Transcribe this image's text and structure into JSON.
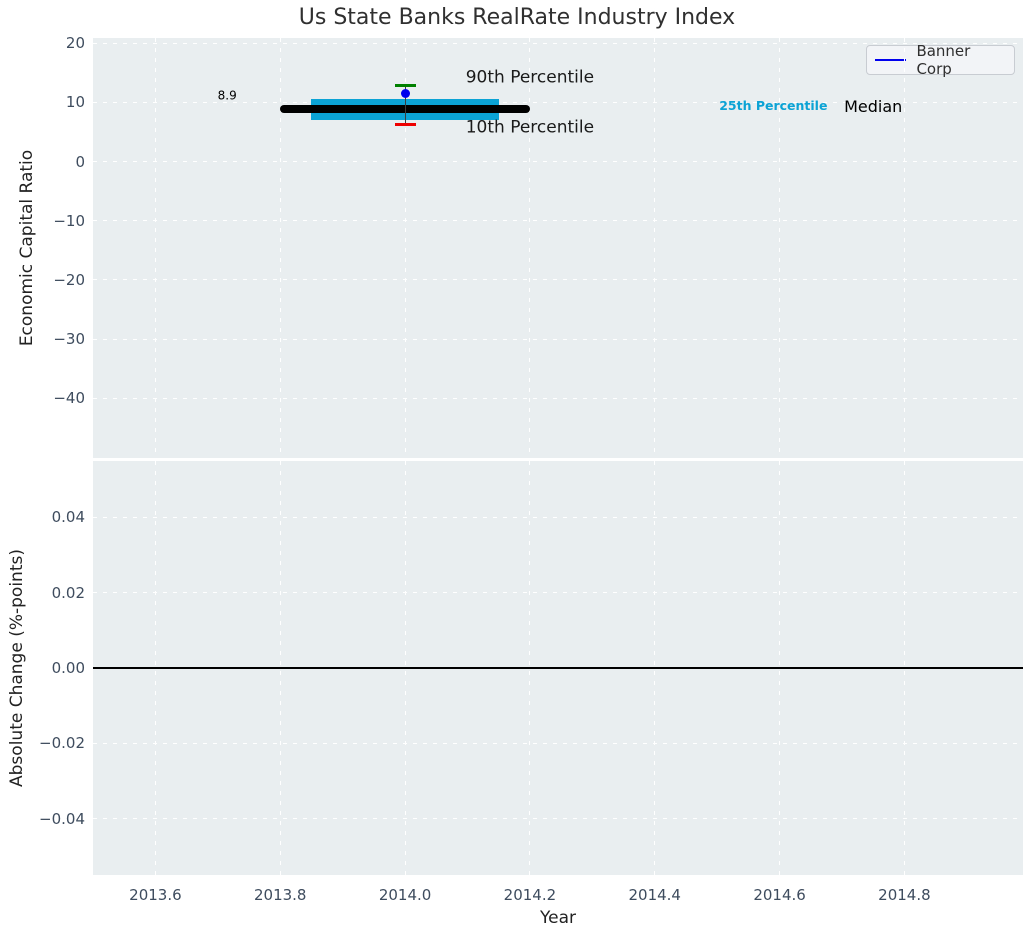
{
  "figure": {
    "title": "Us State Banks RealRate Industry Index"
  },
  "legend": {
    "label": "Banner Corp",
    "line_color": "#0000ee",
    "position": "upper right"
  },
  "colors": {
    "axes_background": "#e9eef0",
    "grid": "#ffffff",
    "tick_label": "#3e4c5e",
    "axis_label": "#222222",
    "title": "#303030",
    "median_line": "#000000",
    "percentile_band": "#0ba3d5",
    "p90_tick": "#008000",
    "p10_tick": "#ee0000",
    "banner_corp": "#0000ee",
    "whisker": "#3c3c3c",
    "zero_line": "#000000"
  },
  "chart_data": [
    {
      "type": "scatter",
      "subplot": "top",
      "title": "Us State Banks RealRate Industry Index",
      "ylabel": "Economic Capital Ratio",
      "xlim": [
        2013.5,
        2014.99
      ],
      "ylim": [
        -50.1,
        20.9
      ],
      "grid": true,
      "legend_position": "upper right",
      "x_ticks": {
        "values": [
          2013.6,
          2013.8,
          2014.0,
          2014.2,
          2014.4,
          2014.6,
          2014.8
        ],
        "labels": [
          "2013.6",
          "2013.8",
          "2014.0",
          "2014.2",
          "2014.4",
          "2014.6",
          "2014.8"
        ],
        "labels_shown": false
      },
      "y_ticks": {
        "values": [
          20,
          10,
          0,
          -10,
          -20,
          -30,
          -40
        ],
        "labels": [
          "20",
          "10",
          "0",
          "−10",
          "−20",
          "−30",
          "−40"
        ]
      },
      "industry_2014": {
        "x": 2014.0,
        "median": 8.9,
        "p25": 7.0,
        "p75": 10.6,
        "p10": 6.3,
        "p90": 12.8,
        "median_x_span": [
          2013.8,
          2014.2
        ],
        "band_x_span": [
          2013.85,
          2014.15
        ]
      },
      "series": [
        {
          "name": "Banner Corp",
          "x": [
            2014.0
          ],
          "y": [
            11.5
          ],
          "marker": "circle",
          "color": "#0000ee"
        }
      ],
      "annotations": [
        {
          "name": "median-value",
          "text": "8.9",
          "x": 2013.715,
          "y": 11.1,
          "color": "#000000",
          "size": 12,
          "weight": "normal"
        },
        {
          "name": "90th-percentile",
          "text": "90th Percentile",
          "x": 2014.2,
          "y": 14.2,
          "color": "#1a1a1a",
          "size": 17,
          "weight": "normal"
        },
        {
          "name": "10th-percentile",
          "text": "10th Percentile",
          "x": 2014.2,
          "y": 5.7,
          "color": "#1a1a1a",
          "size": 17,
          "weight": "normal"
        },
        {
          "name": "25th-percentile",
          "text": "25th Percentile",
          "x": 2014.59,
          "y": 9.4,
          "color": "#0ba3d5",
          "size": 12.5,
          "weight": "bold"
        },
        {
          "name": "median-label",
          "text": "Median",
          "x": 2014.75,
          "y": 9.3,
          "color": "#000000",
          "size": 16,
          "weight": "normal"
        }
      ]
    },
    {
      "type": "line",
      "subplot": "bottom",
      "xlabel": "Year",
      "ylabel": "Absolute Change (%-points)",
      "xlim": [
        2013.5,
        2014.99
      ],
      "ylim": [
        -0.055,
        0.055
      ],
      "grid": true,
      "x_ticks": {
        "values": [
          2013.6,
          2013.8,
          2014.0,
          2014.2,
          2014.4,
          2014.6,
          2014.8
        ],
        "labels": [
          "2013.6",
          "2013.8",
          "2014.0",
          "2014.2",
          "2014.4",
          "2014.6",
          "2014.8"
        ],
        "labels_shown": true
      },
      "y_ticks": {
        "values": [
          0.04,
          0.02,
          0,
          -0.02,
          -0.04
        ],
        "labels": [
          "0.04",
          "0.02",
          "0.00",
          "−0.02",
          "−0.04"
        ]
      },
      "zero_line": 0.0,
      "series": []
    }
  ]
}
